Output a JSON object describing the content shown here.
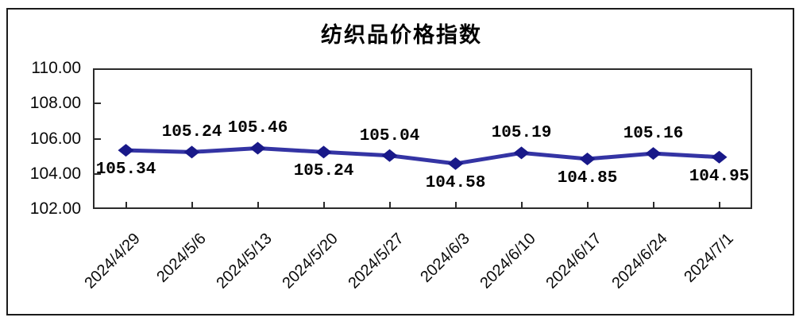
{
  "title": "纺织品价格指数",
  "colors": {
    "line": "#3434A4",
    "marker": "#191989",
    "axis": "#2b2b2b",
    "frame": "#1b1b1b",
    "text": "#000000",
    "background": "#ffffff"
  },
  "chart_data": {
    "type": "line",
    "title": "纺织品价格指数",
    "categories": [
      "2024/4/29",
      "2024/5/6",
      "2024/5/13",
      "2024/5/20",
      "2024/5/27",
      "2024/6/3",
      "2024/6/10",
      "2024/6/17",
      "2024/6/24",
      "2024/7/1"
    ],
    "series": [
      {
        "name": "纺织品价格指数",
        "values": [
          105.34,
          105.24,
          105.46,
          105.24,
          105.04,
          104.58,
          105.19,
          104.85,
          105.16,
          104.95
        ],
        "data_labels": [
          "105.34",
          "105.24",
          "105.46",
          "105.24",
          "105.04",
          "104.58",
          "105.19",
          "104.85",
          "105.16",
          "104.95"
        ],
        "label_positions": [
          "below",
          "above",
          "above",
          "below",
          "above",
          "below",
          "above",
          "below",
          "above",
          "below"
        ]
      }
    ],
    "marker": "diamond",
    "grid": false,
    "legend_position": "none",
    "xlabel": "",
    "ylabel": "",
    "ylim": [
      102,
      110
    ],
    "y_tick_labels": [
      "110.00",
      "108.00",
      "106.00",
      "104.00",
      "102.00"
    ],
    "y_tick_values": [
      110,
      108,
      106,
      104,
      102
    ]
  }
}
